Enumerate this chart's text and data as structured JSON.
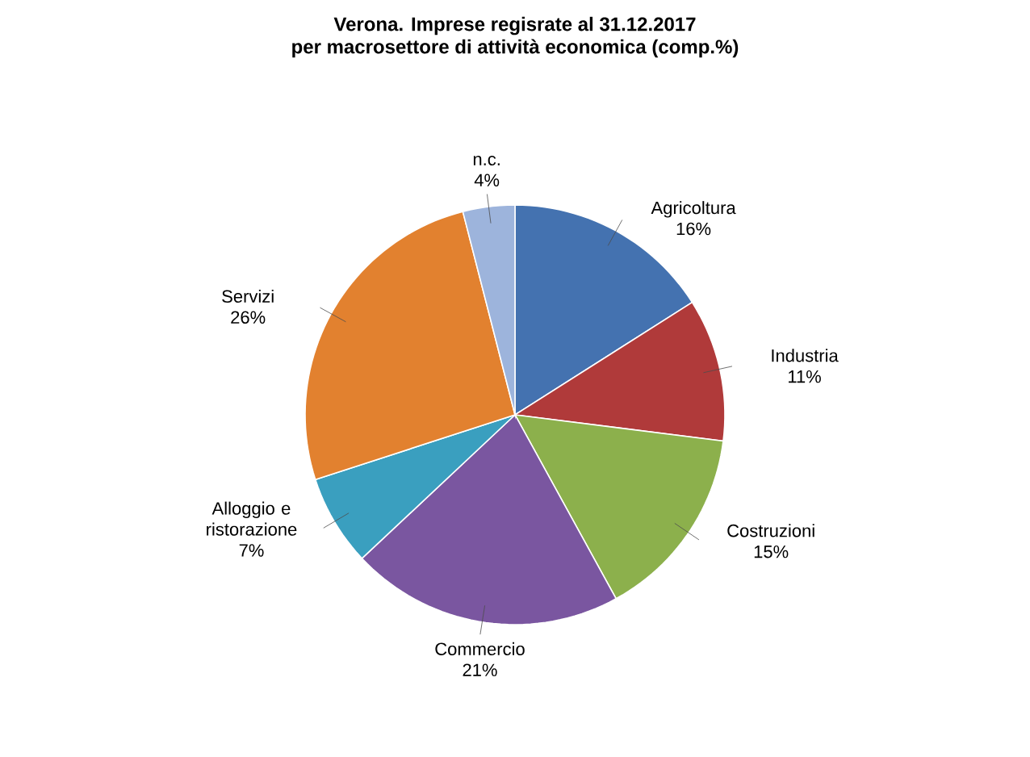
{
  "chart_data": {
    "type": "pie",
    "title": "Verona. Imprese regisrate al 31.12.2017",
    "subtitle": "per macrosettore di attività economica (comp.%)",
    "categories": [
      "Agricoltura",
      "Industria",
      "Costruzioni",
      "Commercio",
      "Alloggio e ristorazione",
      "Servizi",
      "n.c."
    ],
    "values": [
      16,
      11,
      15,
      21,
      7,
      26,
      4
    ],
    "value_labels": [
      "16%",
      "11%",
      "15%",
      "21%",
      "7%",
      "26%",
      "4%"
    ],
    "colors": [
      "#4472b0",
      "#b03a3a",
      "#8cb04c",
      "#7a56a0",
      "#3a9fbf",
      "#e2812f",
      "#9db4dc"
    ]
  }
}
